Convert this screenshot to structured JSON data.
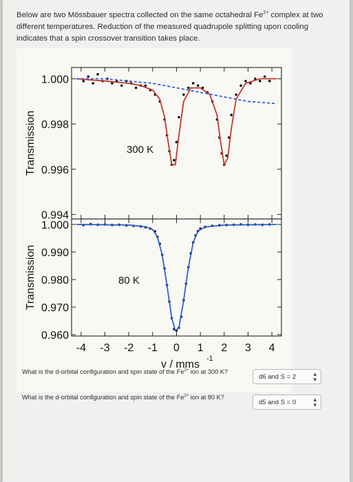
{
  "intro": {
    "line1": "Below are two Mössbauer spectra collected on the same octahedral Fe",
    "ion_charge": "2+",
    "line1_end": " complex at two different temperatures. Reduction of the measured quadrupole splitting upon cooling indicates that a spin crossover transition takes place."
  },
  "chart_data": [
    {
      "type": "scatter",
      "panel": "top",
      "annotation": "300 K",
      "ylabel": "Transmission",
      "yticks": [
        1.0,
        0.998,
        0.996,
        0.994
      ],
      "ytick_labels": [
        "1.000",
        "0.998",
        "0.996",
        "0.994"
      ],
      "ylim": [
        0.9938,
        1.0005
      ],
      "xlim": [
        -4.4,
        4.4
      ],
      "series": [
        {
          "style": "points",
          "color": "#111111",
          "x": [
            -3.9,
            -3.7,
            -3.5,
            -3.3,
            -3.1,
            -2.9,
            -2.7,
            -2.5,
            -2.3,
            -2.1,
            -1.9,
            -1.7,
            -1.5,
            -1.3,
            -1.1,
            -0.9,
            -0.7,
            -0.5,
            -0.4,
            -0.3,
            -0.2,
            -0.1,
            0.0,
            0.1,
            0.3,
            0.5,
            0.7,
            0.9,
            1.1,
            1.3,
            1.5,
            1.7,
            1.8,
            1.9,
            2.0,
            2.1,
            2.2,
            2.3,
            2.5,
            2.7,
            2.9,
            3.1,
            3.3,
            3.5,
            3.7,
            3.9
          ],
          "y": [
            0.9999,
            1.0001,
            0.9998,
            1.0002,
            0.9999,
            1.0,
            0.9998,
            0.9999,
            0.9997,
            0.9999,
            0.9998,
            0.9996,
            0.9997,
            0.9997,
            0.9995,
            0.9993,
            0.999,
            0.9982,
            0.9975,
            0.9968,
            0.9962,
            0.9964,
            0.9972,
            0.9983,
            0.9993,
            0.9996,
            0.9998,
            0.9997,
            0.9996,
            0.9994,
            0.999,
            0.9982,
            0.9974,
            0.9967,
            0.9962,
            0.9966,
            0.9974,
            0.9984,
            0.9993,
            0.9997,
            0.9999,
            0.9998,
            1.0,
            0.9999,
            1.0001,
            0.9999
          ]
        },
        {
          "style": "line",
          "color": "#c0392b",
          "x": [
            -4.2,
            -3.0,
            -2.0,
            -1.5,
            -1.0,
            -0.7,
            -0.5,
            -0.35,
            -0.2,
            -0.05,
            0.1,
            0.3,
            0.6,
            1.0,
            1.4,
            1.7,
            1.85,
            2.0,
            2.15,
            2.3,
            2.5,
            2.9,
            3.5,
            4.2
          ],
          "y": [
            1.0,
            0.9999,
            0.9998,
            0.9997,
            0.9995,
            0.9991,
            0.9983,
            0.9972,
            0.9962,
            0.9962,
            0.9975,
            0.999,
            0.9996,
            0.9996,
            0.9993,
            0.9984,
            0.9972,
            0.9962,
            0.9965,
            0.9978,
            0.9991,
            0.9998,
            1.0,
            1.0
          ]
        },
        {
          "style": "line",
          "color": "#2f5fd0",
          "dashed": true,
          "x": [
            -4.2,
            -3.0,
            -2.0,
            -1.0,
            -0.5,
            0.0,
            0.5,
            1.0,
            1.5,
            2.0,
            2.5,
            3.0,
            4.2
          ],
          "y": [
            1.0,
            1.0,
            0.9999,
            0.9998,
            0.9997,
            0.9996,
            0.9995,
            0.9994,
            0.9993,
            0.9992,
            0.9991,
            0.999,
            0.9989
          ]
        }
      ]
    },
    {
      "type": "scatter",
      "panel": "bottom",
      "annotation": "80 K",
      "ylabel": "Transmission",
      "xlabel": "v / mms",
      "xlabel_sup": "-1",
      "xticks": [
        -4,
        -3,
        -2,
        -1,
        0,
        1,
        2,
        3,
        4
      ],
      "xtick_labels": [
        "-4",
        "-3",
        "-2",
        "-1",
        "0",
        "1",
        "2",
        "3",
        "4"
      ],
      "yticks": [
        1.0,
        0.99,
        0.98,
        0.97,
        0.96
      ],
      "ytick_labels": [
        "1.000",
        "0.990",
        "0.980",
        "0.970",
        "0.960"
      ],
      "ylim": [
        0.9595,
        1.002
      ],
      "xlim": [
        -4.4,
        4.4
      ],
      "series": [
        {
          "style": "points",
          "color": "#111111",
          "x": [
            -3.9,
            -3.6,
            -3.3,
            -3.0,
            -2.7,
            -2.4,
            -2.1,
            -1.8,
            -1.5,
            -1.3,
            -1.1,
            -0.9,
            -0.8,
            -0.7,
            -0.6,
            -0.5,
            -0.4,
            -0.3,
            -0.2,
            -0.1,
            0.0,
            0.1,
            0.2,
            0.3,
            0.4,
            0.5,
            0.6,
            0.7,
            0.8,
            0.9,
            1.0,
            1.2,
            1.5,
            1.8,
            2.1,
            2.4,
            2.7,
            3.0,
            3.3,
            3.6,
            3.9
          ],
          "y": [
            0.9998,
            1.0001,
            0.9999,
            1.0,
            0.9998,
            0.9999,
            0.9997,
            0.9995,
            0.9993,
            0.999,
            0.9985,
            0.9975,
            0.9955,
            0.993,
            0.989,
            0.984,
            0.978,
            0.972,
            0.966,
            0.962,
            0.9615,
            0.9625,
            0.9665,
            0.9725,
            0.9785,
            0.9845,
            0.9895,
            0.9935,
            0.996,
            0.9976,
            0.9985,
            0.9991,
            0.9995,
            0.9997,
            0.9998,
            0.9999,
            1.0,
            0.9999,
            1.0,
            0.9999,
            1.0
          ]
        },
        {
          "style": "line",
          "color": "#2f5fd0",
          "x": [
            -4.2,
            -2.0,
            -1.3,
            -1.0,
            -0.8,
            -0.6,
            -0.4,
            -0.2,
            -0.05,
            0.1,
            0.3,
            0.5,
            0.7,
            0.9,
            1.2,
            2.0,
            4.2
          ],
          "y": [
            1.0,
            0.9998,
            0.9992,
            0.9982,
            0.9955,
            0.989,
            0.978,
            0.966,
            0.9615,
            0.9625,
            0.9725,
            0.9845,
            0.9935,
            0.9976,
            0.9991,
            0.9998,
            1.0
          ]
        }
      ]
    }
  ],
  "questions": [
    {
      "text_start": "What is the d-orbital configuration and spin state of the Fe",
      "ion_charge": "2+",
      "text_end": " ion at 300 K?",
      "selected": "d6 and S = 2"
    },
    {
      "text_start": "What is the d-orbital configuration and spin state of the Fe",
      "ion_charge": "2+",
      "text_end": " ion at 80 K?",
      "selected": "d5 and S = 0"
    }
  ]
}
